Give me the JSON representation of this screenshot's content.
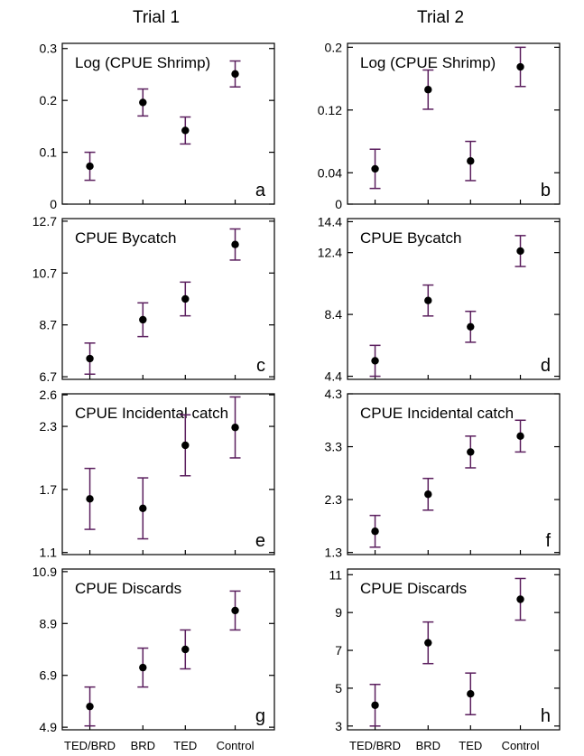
{
  "figure": {
    "column_titles": [
      "Trial 1",
      "Trial 2"
    ],
    "categories": [
      "TED/BRD",
      "BRD",
      "TED",
      "Control"
    ],
    "colors": {
      "errorbar": "#5b1f5e",
      "point": "#000000",
      "frame": "#000000"
    }
  },
  "chart_data": [
    {
      "type": "scatter",
      "trial": "Trial 1",
      "title": "Log (CPUE Shrimp)",
      "panel_letter": "a",
      "categories": [
        "TED/BRD",
        "BRD",
        "TED",
        "Control"
      ],
      "values": [
        0.073,
        0.196,
        0.142,
        0.251
      ],
      "error": [
        0.027,
        0.026,
        0.026,
        0.025
      ],
      "yticks": [
        0,
        0.1,
        0.2,
        0.3
      ],
      "ytick_labels": [
        "0",
        "0.1",
        "0.2",
        "0.3"
      ],
      "ylim": [
        0,
        0.31
      ]
    },
    {
      "type": "scatter",
      "trial": "Trial 2",
      "title": "Log (CPUE Shrimp)",
      "panel_letter": "b",
      "categories": [
        "TED/BRD",
        "BRD",
        "TED",
        "Control"
      ],
      "values": [
        0.045,
        0.146,
        0.055,
        0.175
      ],
      "error": [
        0.025,
        0.025,
        0.025,
        0.025
      ],
      "yticks": [
        0,
        0.04,
        0.12,
        0.2
      ],
      "ytick_labels": [
        "0",
        "0.04",
        "0.12",
        "0.2"
      ],
      "ylim": [
        0,
        0.205
      ]
    },
    {
      "type": "scatter",
      "trial": "Trial 1",
      "title": "CPUE Bycatch",
      "panel_letter": "c",
      "categories": [
        "TED/BRD",
        "BRD",
        "TED",
        "Control"
      ],
      "values": [
        7.4,
        8.9,
        9.7,
        11.8
      ],
      "error": [
        0.6,
        0.65,
        0.65,
        0.6
      ],
      "yticks": [
        6.7,
        8.7,
        10.7,
        12.7
      ],
      "ytick_labels": [
        "6.7",
        "8.7",
        "10.7",
        "12.7"
      ],
      "ylim": [
        6.6,
        12.8
      ]
    },
    {
      "type": "scatter",
      "trial": "Trial 2",
      "title": "CPUE Bycatch",
      "panel_letter": "d",
      "categories": [
        "TED/BRD",
        "BRD",
        "TED",
        "Control"
      ],
      "values": [
        5.4,
        9.3,
        7.6,
        12.5
      ],
      "error": [
        1.0,
        1.0,
        1.0,
        1.0
      ],
      "yticks": [
        4.4,
        8.4,
        12.4,
        14.4
      ],
      "ytick_labels": [
        "4.4",
        "8.4",
        "12.4",
        "14.4"
      ],
      "ylim": [
        4.2,
        14.6
      ]
    },
    {
      "type": "scatter",
      "trial": "Trial 1",
      "title": "CPUE Incidental catch",
      "panel_letter": "e",
      "categories": [
        "TED/BRD",
        "BRD",
        "TED",
        "Control"
      ],
      "values": [
        1.61,
        1.52,
        2.12,
        2.29
      ],
      "error": [
        0.29,
        0.29,
        0.29,
        0.29
      ],
      "yticks": [
        1.1,
        1.7,
        2.3,
        2.6
      ],
      "ytick_labels": [
        "1.1",
        "1.7",
        "2.3",
        "2.6"
      ],
      "ylim": [
        1.08,
        2.61
      ]
    },
    {
      "type": "scatter",
      "trial": "Trial 2",
      "title": "CPUE Incidental catch",
      "panel_letter": "f",
      "categories": [
        "TED/BRD",
        "BRD",
        "TED",
        "Control"
      ],
      "values": [
        1.7,
        2.4,
        3.2,
        3.5
      ],
      "error": [
        0.3,
        0.3,
        0.3,
        0.3
      ],
      "yticks": [
        1.3,
        2.3,
        3.3,
        4.3
      ],
      "ytick_labels": [
        "1.3",
        "2.3",
        "3.3",
        "4.3"
      ],
      "ylim": [
        1.26,
        4.3
      ]
    },
    {
      "type": "scatter",
      "trial": "Trial 1",
      "title": "CPUE Discards",
      "panel_letter": "g",
      "categories": [
        "TED/BRD",
        "BRD",
        "TED",
        "Control"
      ],
      "values": [
        5.7,
        7.2,
        7.9,
        9.4
      ],
      "error": [
        0.75,
        0.75,
        0.75,
        0.75
      ],
      "yticks": [
        4.9,
        6.9,
        8.9,
        10.9
      ],
      "ytick_labels": [
        "4.9",
        "6.9",
        "8.9",
        "10.9"
      ],
      "ylim": [
        4.8,
        11.0
      ]
    },
    {
      "type": "scatter",
      "trial": "Trial 2",
      "title": "CPUE Discards",
      "panel_letter": "h",
      "categories": [
        "TED/BRD",
        "BRD",
        "TED",
        "Control"
      ],
      "values": [
        4.1,
        7.4,
        4.7,
        9.7
      ],
      "error": [
        1.1,
        1.1,
        1.1,
        1.1
      ],
      "yticks": [
        3,
        5,
        7,
        9,
        11
      ],
      "ytick_labels": [
        "3",
        "5",
        "7",
        "9",
        "11"
      ],
      "ylim": [
        2.8,
        11.3
      ]
    }
  ]
}
